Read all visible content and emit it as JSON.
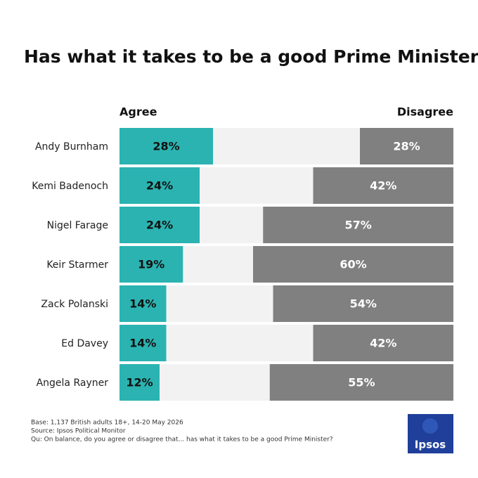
{
  "chart_data": {
    "type": "bar",
    "orientation": "horizontal",
    "stacking": "diverging",
    "title": "Has what it takes to be a good Prime Minister",
    "categories": [
      "Andy Burnham",
      "Kemi Badenoch",
      "Nigel Farage",
      "Keir Starmer",
      "Zack Polanski",
      "Ed Davey",
      "Angela Rayner"
    ],
    "series": [
      {
        "name": "Agree",
        "color": "#2bb3b1",
        "side": "left",
        "values": [
          28,
          24,
          24,
          19,
          14,
          14,
          12
        ],
        "value_labels": [
          "28%",
          "24%",
          "24%",
          "19%",
          "14%",
          "14%",
          "12%"
        ]
      },
      {
        "name": "Disagree",
        "color": "#808080",
        "side": "right",
        "values": [
          28,
          42,
          57,
          60,
          54,
          42,
          55
        ],
        "value_labels": [
          "28%",
          "42%",
          "57%",
          "60%",
          "54%",
          "42%",
          "55%"
        ]
      }
    ],
    "xlim": [
      0,
      100
    ],
    "footnotes": [
      "Base: 1,137 British adults 18+, 14-20 May 2026",
      "Source: Ipsos Political Monitor",
      "Qu: On balance, do you agree or disagree that... has what it takes to be a good Prime Minister?"
    ],
    "logo": "Ipsos"
  }
}
